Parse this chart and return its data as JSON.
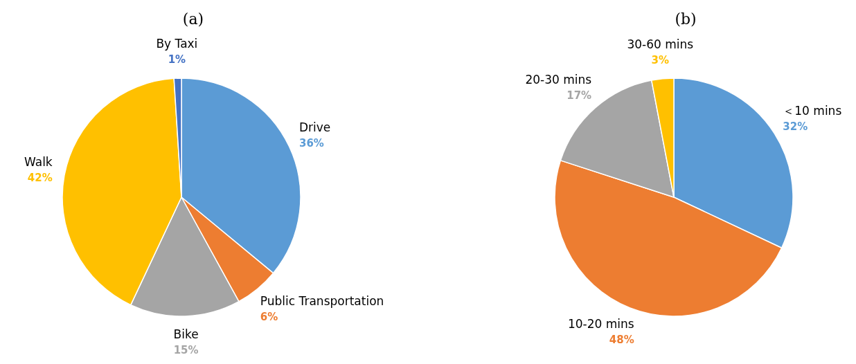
{
  "chart_data": [
    {
      "type": "pie",
      "title": "(a)",
      "categories": [
        "Drive",
        "Public Transportation",
        "Bike",
        "Walk",
        "By Taxi"
      ],
      "values": [
        36,
        6,
        15,
        42,
        1
      ],
      "colors": [
        "#5b9bd5",
        "#ed7d31",
        "#a5a5a5",
        "#ffc000",
        "#4472c4"
      ],
      "value_labels": [
        "36%",
        "6%",
        "15%",
        "42%",
        "1%"
      ]
    },
    {
      "type": "pie",
      "title": "(b)",
      "categories": [
        "＜10 mins",
        "10-20 mins",
        "20-30 mins",
        "30-60 mins"
      ],
      "values": [
        32,
        48,
        17,
        3
      ],
      "colors": [
        "#5b9bd5",
        "#ed7d31",
        "#a5a5a5",
        "#ffc000"
      ],
      "value_labels": [
        "32%",
        "48%",
        "17%",
        "3%"
      ]
    }
  ]
}
